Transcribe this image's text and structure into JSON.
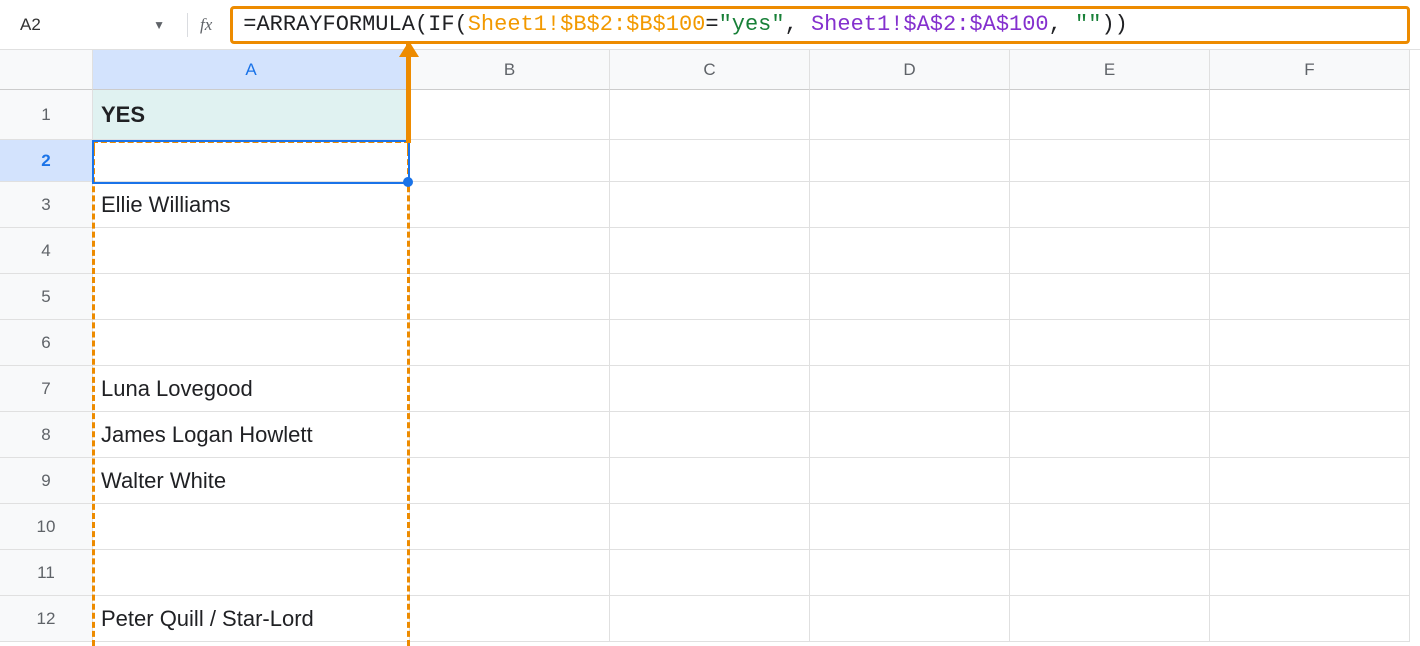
{
  "nameBox": {
    "value": "A2"
  },
  "formulaBar": {
    "parts": [
      {
        "text": "=ARRAYFORMULA(IF(",
        "cls": "f-black"
      },
      {
        "text": "Sheet1!$B$2:$B$100",
        "cls": "f-orange"
      },
      {
        "text": "=",
        "cls": "f-black"
      },
      {
        "text": "\"yes\"",
        "cls": "f-green"
      },
      {
        "text": ", ",
        "cls": "f-black"
      },
      {
        "text": "Sheet1!$A$2:$A$100",
        "cls": "f-purple"
      },
      {
        "text": ", ",
        "cls": "f-black"
      },
      {
        "text": "\"\"",
        "cls": "f-green"
      },
      {
        "text": "))",
        "cls": "f-black"
      }
    ]
  },
  "columns": [
    {
      "label": "A",
      "cls": "col-a",
      "active": true
    },
    {
      "label": "B",
      "cls": "col-b",
      "active": false
    },
    {
      "label": "C",
      "cls": "col-c",
      "active": false
    },
    {
      "label": "D",
      "cls": "col-d",
      "active": false
    },
    {
      "label": "E",
      "cls": "col-e",
      "active": false
    },
    {
      "label": "F",
      "cls": "col-f",
      "active": false
    }
  ],
  "rows": [
    {
      "num": "1",
      "active": false,
      "heightCls": "row-1",
      "cells": [
        {
          "val": "YES",
          "headerYes": true
        },
        {
          "val": ""
        },
        {
          "val": ""
        },
        {
          "val": ""
        },
        {
          "val": ""
        },
        {
          "val": ""
        }
      ]
    },
    {
      "num": "2",
      "active": true,
      "heightCls": "row-2",
      "cells": [
        {
          "val": ""
        },
        {
          "val": ""
        },
        {
          "val": ""
        },
        {
          "val": ""
        },
        {
          "val": ""
        },
        {
          "val": ""
        }
      ]
    },
    {
      "num": "3",
      "active": false,
      "heightCls": "row-std",
      "cells": [
        {
          "val": "Ellie Williams"
        },
        {
          "val": ""
        },
        {
          "val": ""
        },
        {
          "val": ""
        },
        {
          "val": ""
        },
        {
          "val": ""
        }
      ]
    },
    {
      "num": "4",
      "active": false,
      "heightCls": "row-std",
      "cells": [
        {
          "val": ""
        },
        {
          "val": ""
        },
        {
          "val": ""
        },
        {
          "val": ""
        },
        {
          "val": ""
        },
        {
          "val": ""
        }
      ]
    },
    {
      "num": "5",
      "active": false,
      "heightCls": "row-std",
      "cells": [
        {
          "val": ""
        },
        {
          "val": ""
        },
        {
          "val": ""
        },
        {
          "val": ""
        },
        {
          "val": ""
        },
        {
          "val": ""
        }
      ]
    },
    {
      "num": "6",
      "active": false,
      "heightCls": "row-std",
      "cells": [
        {
          "val": ""
        },
        {
          "val": ""
        },
        {
          "val": ""
        },
        {
          "val": ""
        },
        {
          "val": ""
        },
        {
          "val": ""
        }
      ]
    },
    {
      "num": "7",
      "active": false,
      "heightCls": "row-std",
      "cells": [
        {
          "val": "Luna Lovegood"
        },
        {
          "val": ""
        },
        {
          "val": ""
        },
        {
          "val": ""
        },
        {
          "val": ""
        },
        {
          "val": ""
        }
      ]
    },
    {
      "num": "8",
      "active": false,
      "heightCls": "row-std",
      "cells": [
        {
          "val": "James Logan Howlett"
        },
        {
          "val": ""
        },
        {
          "val": ""
        },
        {
          "val": ""
        },
        {
          "val": ""
        },
        {
          "val": ""
        }
      ]
    },
    {
      "num": "9",
      "active": false,
      "heightCls": "row-std",
      "cells": [
        {
          "val": "Walter White"
        },
        {
          "val": ""
        },
        {
          "val": ""
        },
        {
          "val": ""
        },
        {
          "val": ""
        },
        {
          "val": ""
        }
      ]
    },
    {
      "num": "10",
      "active": false,
      "heightCls": "row-std",
      "cells": [
        {
          "val": ""
        },
        {
          "val": ""
        },
        {
          "val": ""
        },
        {
          "val": ""
        },
        {
          "val": ""
        },
        {
          "val": ""
        }
      ]
    },
    {
      "num": "11",
      "active": false,
      "heightCls": "row-std",
      "cells": [
        {
          "val": ""
        },
        {
          "val": ""
        },
        {
          "val": ""
        },
        {
          "val": ""
        },
        {
          "val": ""
        },
        {
          "val": ""
        }
      ]
    },
    {
      "num": "12",
      "active": false,
      "heightCls": "row-std",
      "cells": [
        {
          "val": "Peter Quill / Star-Lord"
        },
        {
          "val": ""
        },
        {
          "val": ""
        },
        {
          "val": ""
        },
        {
          "val": ""
        },
        {
          "val": ""
        }
      ]
    }
  ],
  "colors": {
    "highlight": "#ed8b00",
    "selection": "#1a73e8",
    "headerFill": "#e0f2f1"
  }
}
